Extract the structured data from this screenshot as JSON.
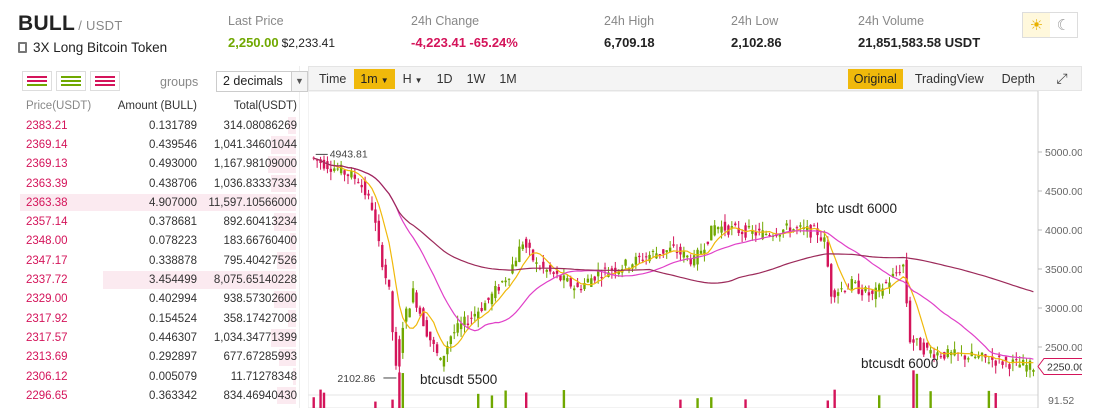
{
  "header": {
    "symbol": "BULL",
    "quote": "/ USDT",
    "token_name": "3X Long Bitcoin Token",
    "last_price_label": "Last Price",
    "last_price": "2,250.00",
    "last_price_usd": "$2,233.41",
    "change_label": "24h Change",
    "change_value": "-4,223.41",
    "change_pct": "-65.24%",
    "high_label": "24h High",
    "high_value": "6,709.18",
    "low_label": "24h Low",
    "low_value": "2,102.86",
    "volume_label": "24h Volume",
    "volume_value": "21,851,583.58 USDT",
    "theme_icons": [
      "sun-icon",
      "moon-icon"
    ]
  },
  "orderbook": {
    "groups_label": "groups",
    "groups_value": "2 decimals",
    "col_price": "Price(USDT)",
    "col_amount": "Amount (BULL)",
    "col_total": "Total(USDT)",
    "rows": [
      {
        "price": "2383.21",
        "amount": "0.131789",
        "total": "314.08086269",
        "depth": 0.03
      },
      {
        "price": "2369.14",
        "amount": "0.439546",
        "total": "1,041.34601044",
        "depth": 0.09
      },
      {
        "price": "2369.13",
        "amount": "0.493000",
        "total": "1,167.98109000",
        "depth": 0.1
      },
      {
        "price": "2363.39",
        "amount": "0.438706",
        "total": "1,036.83337334",
        "depth": 0.09
      },
      {
        "price": "2363.38",
        "amount": "4.907000",
        "total": "11,597.10566000",
        "depth": 1.0
      },
      {
        "price": "2357.14",
        "amount": "0.378681",
        "total": "892.60413234",
        "depth": 0.08
      },
      {
        "price": "2348.00",
        "amount": "0.078223",
        "total": "183.66760400",
        "depth": 0.02
      },
      {
        "price": "2347.17",
        "amount": "0.338878",
        "total": "795.40427526",
        "depth": 0.07
      },
      {
        "price": "2337.72",
        "amount": "3.454499",
        "total": "8,075.65140228",
        "depth": 0.7
      },
      {
        "price": "2329.00",
        "amount": "0.402994",
        "total": "938.57302600",
        "depth": 0.08
      },
      {
        "price": "2317.92",
        "amount": "0.154524",
        "total": "358.17427008",
        "depth": 0.03
      },
      {
        "price": "2317.57",
        "amount": "0.446307",
        "total": "1,034.34771399",
        "depth": 0.09
      },
      {
        "price": "2313.69",
        "amount": "0.292897",
        "total": "677.67285993",
        "depth": 0.06
      },
      {
        "price": "2306.12",
        "amount": "0.005079",
        "total": "11.71278348",
        "depth": 0.01
      },
      {
        "price": "2296.65",
        "amount": "0.363342",
        "total": "834.46940430",
        "depth": 0.07
      }
    ]
  },
  "chart": {
    "toolbar": [
      {
        "label": "Time",
        "active": false,
        "dropdown": false
      },
      {
        "label": "1m",
        "active": true,
        "dropdown": true
      },
      {
        "label": "H",
        "active": false,
        "dropdown": true
      },
      {
        "label": "1D",
        "active": false,
        "dropdown": false
      },
      {
        "label": "1W",
        "active": false,
        "dropdown": false
      },
      {
        "label": "1M",
        "active": false,
        "dropdown": false
      }
    ],
    "views": [
      {
        "label": "Original",
        "active": true
      },
      {
        "label": "TradingView",
        "active": false
      },
      {
        "label": "Depth",
        "active": false
      }
    ],
    "price_ticks": [
      "5000.00",
      "4500.00",
      "4000.00",
      "3500.00",
      "3000.00",
      "2500.00"
    ],
    "current_price_tag": "2250.00",
    "high_marker": "4943.81",
    "low_marker": "2102.86",
    "volume_tick": "91.52",
    "annotations": [
      "btc usdt 6000",
      "btcusdt 5500",
      "btcusdt 6000"
    ],
    "colors": {
      "up": "#70a800",
      "down": "#d4145a",
      "ma_short": "#f0b90b",
      "ma_mid": "#e040c8",
      "ma_long": "#9c2a5a"
    }
  }
}
